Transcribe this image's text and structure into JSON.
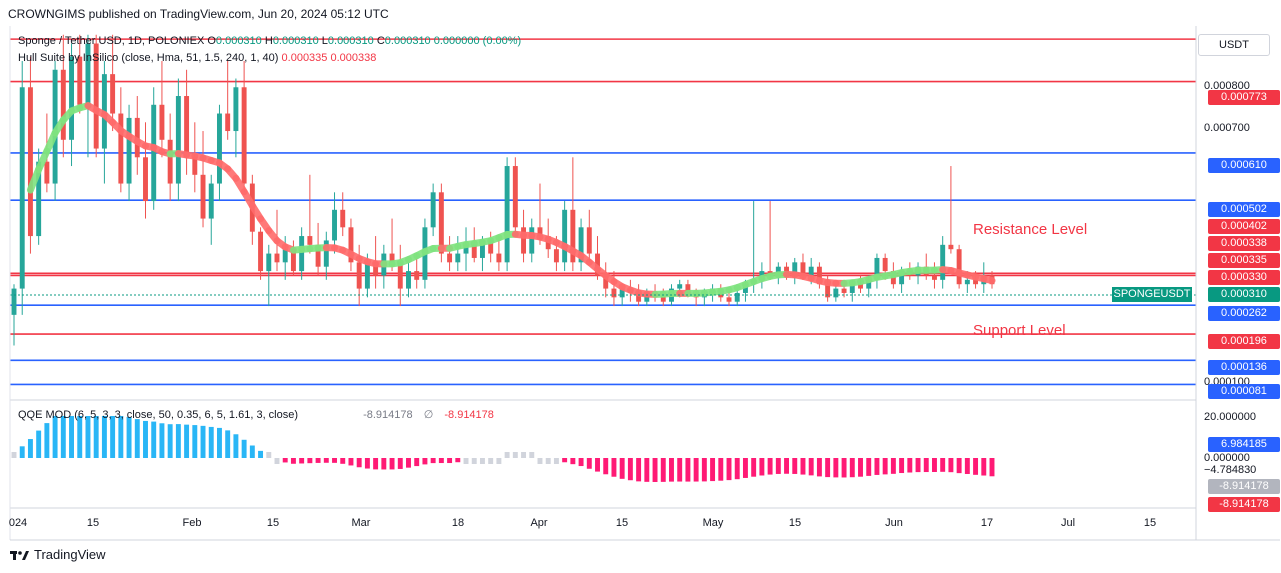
{
  "header": {
    "text": "CROWNGIMS published on TradingView.com, Jun 20, 2024 05:12 UTC"
  },
  "legend": {
    "symbol": "Sponge / Tether USD, 1D, POLONIEX",
    "o_label": "O",
    "o_value": "0.000310",
    "h_label": "H",
    "h_value": "0.000310",
    "l_label": "L",
    "l_value": "0.000310",
    "c_label": "C",
    "c_value": "0.000310",
    "change": "0.000000 (0.00%)",
    "hull_name": "Hull Suite by InSilico (close, Hma, 51, 1.5, 240, 1, 40)",
    "hull_v1": "0.000335",
    "hull_v2": "0.000338"
  },
  "qqe": {
    "name": "QQE MOD (6, 5, 3, 3, close, 50, 0.35, 6, 5, 1.61, 3, close)",
    "v1": "-8.914178",
    "symbol": "∅",
    "v2": "-8.914178"
  },
  "currency": "USDT",
  "price_scale": {
    "plain_ticks": [
      "0.000800",
      "0.000700",
      "0.000100"
    ],
    "labels": [
      {
        "text": "0.000773",
        "color": "#f23645",
        "y": 0.000773
      },
      {
        "text": "0.000610",
        "color": "#2962ff",
        "y": 0.00061
      },
      {
        "text": "0.000502",
        "color": "#2962ff",
        "y": 0.000502
      },
      {
        "text": "0.000402",
        "color": "#f23645",
        "y": 0.000402
      },
      {
        "text": "0.000338",
        "color": "#f23645",
        "y": 0.000338
      },
      {
        "text": "0.000335",
        "color": "#f23645",
        "y": 0.000335
      },
      {
        "text": "0.000330",
        "color": "#f23645",
        "y": 0.00033
      },
      {
        "text": "0.000310",
        "color": "#089981",
        "y": 0.00031
      },
      {
        "text": "0.000262",
        "color": "#2962ff",
        "y": 0.000262
      },
      {
        "text": "0.000196",
        "color": "#f23645",
        "y": 0.000196
      },
      {
        "text": "0.000136",
        "color": "#2962ff",
        "y": 0.000136
      },
      {
        "text": "0.000081",
        "color": "#2962ff",
        "y": 8.1e-05
      }
    ]
  },
  "symbol_tag": "SPONGEUSDT",
  "osc_scale": {
    "plain_ticks": [
      "20.000000",
      "0.000000",
      "−4.784830"
    ],
    "labels": [
      {
        "text": "6.984185",
        "color": "#2962ff"
      },
      {
        "text": "-8.914178",
        "color": "#b2b5be"
      },
      {
        "text": "-8.914178",
        "color": "#f23645"
      }
    ]
  },
  "x_axis": {
    "ticks": [
      "024",
      "15",
      "Feb",
      "15",
      "Mar",
      "18",
      "Apr",
      "15",
      "May",
      "15",
      "Jun",
      "17",
      "Jul",
      "15"
    ]
  },
  "annotations": {
    "resistance": "Resistance Level",
    "support": "Support Level"
  },
  "footer": {
    "brand": "TradingView"
  },
  "chart_data": {
    "type": "candlestick",
    "title": "Sponge / Tether USD, 1D, POLONIEX",
    "y_unit": "USDT",
    "horizontal_levels": [
      {
        "value": 0.00087,
        "color": "#f23645"
      },
      {
        "value": 0.000773,
        "color": "#f23645"
      },
      {
        "value": 0.00061,
        "color": "#2962ff"
      },
      {
        "value": 0.000502,
        "color": "#2962ff"
      },
      {
        "value": 0.000335,
        "color": "#f23645"
      },
      {
        "value": 0.00033,
        "color": "#f23645"
      },
      {
        "value": 0.000262,
        "color": "#2962ff"
      },
      {
        "value": 0.000196,
        "color": "#f23645"
      },
      {
        "value": 0.000136,
        "color": "#2962ff"
      },
      {
        "value": 8.1e-05,
        "color": "#2962ff"
      }
    ],
    "last_close": 0.00031,
    "colors": {
      "up": "#26a69a",
      "down": "#ef5350",
      "hull_up": "#7fe37f",
      "hull_down": "#ff6b6b"
    },
    "candles": [
      [
        0.00024,
        0.00031,
        0.00017,
        0.0003
      ],
      [
        0.0003,
        0.00082,
        0.00024,
        0.00076
      ],
      [
        0.00076,
        0.00083,
        0.00038,
        0.00042
      ],
      [
        0.00042,
        0.00062,
        0.0004,
        0.00059
      ],
      [
        0.00059,
        0.0007,
        0.00052,
        0.00054
      ],
      [
        0.00054,
        0.00082,
        0.0005,
        0.0008
      ],
      [
        0.0008,
        0.00088,
        0.0006,
        0.00064
      ],
      [
        0.00064,
        0.00086,
        0.00058,
        0.00083
      ],
      [
        0.00083,
        0.00088,
        0.0007,
        0.00072
      ],
      [
        0.00072,
        0.00088,
        0.0006,
        0.00086
      ],
      [
        0.00086,
        0.00088,
        0.0006,
        0.00062
      ],
      [
        0.00062,
        0.00082,
        0.00054,
        0.00079
      ],
      [
        0.00079,
        0.00088,
        0.00066,
        0.0007
      ],
      [
        0.0007,
        0.00076,
        0.00052,
        0.00054
      ],
      [
        0.00054,
        0.00072,
        0.0005,
        0.00069
      ],
      [
        0.00069,
        0.00074,
        0.00056,
        0.0006
      ],
      [
        0.0006,
        0.00068,
        0.00046,
        0.0005
      ],
      [
        0.0005,
        0.00076,
        0.00048,
        0.00072
      ],
      [
        0.00072,
        0.00082,
        0.0006,
        0.00064
      ],
      [
        0.00064,
        0.0007,
        0.0005,
        0.00054
      ],
      [
        0.00054,
        0.00078,
        0.0005,
        0.00074
      ],
      [
        0.00074,
        0.0008,
        0.00056,
        0.0006
      ],
      [
        0.0006,
        0.00068,
        0.00052,
        0.00056
      ],
      [
        0.00056,
        0.00066,
        0.00044,
        0.00046
      ],
      [
        0.00046,
        0.00056,
        0.0004,
        0.00054
      ],
      [
        0.00054,
        0.00072,
        0.0005,
        0.0007
      ],
      [
        0.0007,
        0.00082,
        0.00064,
        0.00066
      ],
      [
        0.00066,
        0.00078,
        0.0006,
        0.00076
      ],
      [
        0.00076,
        0.00082,
        0.00052,
        0.00054
      ],
      [
        0.00054,
        0.00056,
        0.0004,
        0.00043
      ],
      [
        0.00043,
        0.00044,
        0.00032,
        0.00034
      ],
      [
        0.00034,
        0.0004,
        0.00026,
        0.00038
      ],
      [
        0.00038,
        0.00048,
        0.00034,
        0.00036
      ],
      [
        0.00036,
        0.00042,
        0.00032,
        0.00039
      ],
      [
        0.00039,
        0.00041,
        0.00033,
        0.00034
      ],
      [
        0.00034,
        0.00044,
        0.00032,
        0.00042
      ],
      [
        0.00042,
        0.00056,
        0.00038,
        0.0004
      ],
      [
        0.0004,
        0.00045,
        0.00033,
        0.00035
      ],
      [
        0.00035,
        0.00043,
        0.00032,
        0.00041
      ],
      [
        0.00041,
        0.00052,
        0.00038,
        0.00048
      ],
      [
        0.00048,
        0.00052,
        0.00042,
        0.00044
      ],
      [
        0.00044,
        0.00046,
        0.00034,
        0.00036
      ],
      [
        0.00036,
        0.0004,
        0.00026,
        0.0003
      ],
      [
        0.0003,
        0.00038,
        0.00028,
        0.00036
      ],
      [
        0.00036,
        0.00042,
        0.0003,
        0.00033
      ],
      [
        0.00033,
        0.0004,
        0.0003,
        0.00038
      ],
      [
        0.00038,
        0.00046,
        0.00034,
        0.00036
      ],
      [
        0.00036,
        0.0004,
        0.00026,
        0.0003
      ],
      [
        0.0003,
        0.00036,
        0.00028,
        0.00034
      ],
      [
        0.00034,
        0.00038,
        0.0003,
        0.00032
      ],
      [
        0.00032,
        0.00046,
        0.0003,
        0.00044
      ],
      [
        0.00044,
        0.00054,
        0.00042,
        0.00052
      ],
      [
        0.00052,
        0.00054,
        0.00036,
        0.00038
      ],
      [
        0.00038,
        0.00042,
        0.00034,
        0.00036
      ],
      [
        0.00036,
        0.00042,
        0.00034,
        0.00038
      ],
      [
        0.00038,
        0.00044,
        0.00034,
        0.0004
      ],
      [
        0.0004,
        0.00044,
        0.00036,
        0.00037
      ],
      [
        0.00037,
        0.00042,
        0.00034,
        0.00041
      ],
      [
        0.00041,
        0.00043,
        0.00036,
        0.00038
      ],
      [
        0.00038,
        0.00042,
        0.00034,
        0.00036
      ],
      [
        0.00036,
        0.0006,
        0.00034,
        0.00058
      ],
      [
        0.00058,
        0.0006,
        0.00042,
        0.00044
      ],
      [
        0.00044,
        0.00048,
        0.00036,
        0.00038
      ],
      [
        0.00038,
        0.00046,
        0.00036,
        0.00044
      ],
      [
        0.00044,
        0.00054,
        0.0004,
        0.00042
      ],
      [
        0.00042,
        0.00046,
        0.00037,
        0.00039
      ],
      [
        0.00039,
        0.00042,
        0.00034,
        0.00036
      ],
      [
        0.00036,
        0.0005,
        0.00034,
        0.00048
      ],
      [
        0.00048,
        0.0006,
        0.00034,
        0.00036
      ],
      [
        0.00036,
        0.00046,
        0.00034,
        0.00044
      ],
      [
        0.00044,
        0.00048,
        0.00036,
        0.00038
      ],
      [
        0.00038,
        0.00042,
        0.00032,
        0.00033
      ],
      [
        0.00033,
        0.00036,
        0.00028,
        0.0003
      ],
      [
        0.0003,
        0.00034,
        0.00026,
        0.00028
      ],
      [
        0.00028,
        0.00031,
        0.00026,
        0.0003
      ],
      [
        0.0003,
        0.00032,
        0.00027,
        0.00029
      ],
      [
        0.00029,
        0.00031,
        0.00026,
        0.00027
      ],
      [
        0.00027,
        0.0003,
        0.00026,
        0.00029
      ],
      [
        0.00029,
        0.00031,
        0.00027,
        0.00028
      ],
      [
        0.00028,
        0.0003,
        0.00026,
        0.00027
      ],
      [
        0.00027,
        0.00031,
        0.00026,
        0.0003
      ],
      [
        0.0003,
        0.00032,
        0.00028,
        0.00031
      ],
      [
        0.00031,
        0.00032,
        0.00028,
        0.00029
      ],
      [
        0.00029,
        0.0003,
        0.00026,
        0.00028
      ],
      [
        0.00028,
        0.0003,
        0.00026,
        0.00029
      ],
      [
        0.00029,
        0.00031,
        0.00027,
        0.0003
      ],
      [
        0.0003,
        0.00031,
        0.00027,
        0.00028
      ],
      [
        0.00028,
        0.0003,
        0.00026,
        0.00027
      ],
      [
        0.00027,
        0.0003,
        0.00026,
        0.00029
      ],
      [
        0.00029,
        0.00032,
        0.00027,
        0.00031
      ],
      [
        0.00031,
        0.0005,
        0.00029,
        0.00032
      ],
      [
        0.00032,
        0.00036,
        0.0003,
        0.00034
      ],
      [
        0.00034,
        0.0005,
        0.00032,
        0.00033
      ],
      [
        0.00033,
        0.00036,
        0.00031,
        0.00035
      ],
      [
        0.00035,
        0.00036,
        0.00032,
        0.00033
      ],
      [
        0.00033,
        0.00037,
        0.00031,
        0.00036
      ],
      [
        0.00036,
        0.00038,
        0.00032,
        0.00033
      ],
      [
        0.00033,
        0.00037,
        0.00031,
        0.00035
      ],
      [
        0.00035,
        0.00036,
        0.0003,
        0.00031
      ],
      [
        0.00031,
        0.00033,
        0.00027,
        0.00028
      ],
      [
        0.00028,
        0.00031,
        0.00027,
        0.0003
      ],
      [
        0.0003,
        0.00032,
        0.00028,
        0.00029
      ],
      [
        0.00029,
        0.00032,
        0.00027,
        0.00031
      ],
      [
        0.00031,
        0.00033,
        0.00029,
        0.0003
      ],
      [
        0.0003,
        0.00033,
        0.00028,
        0.00032
      ],
      [
        0.00032,
        0.00038,
        0.0003,
        0.00037
      ],
      [
        0.00037,
        0.00038,
        0.00032,
        0.00034
      ],
      [
        0.00034,
        0.00036,
        0.0003,
        0.00031
      ],
      [
        0.00031,
        0.00035,
        0.00029,
        0.00034
      ],
      [
        0.00034,
        0.00036,
        0.00032,
        0.00033
      ],
      [
        0.00033,
        0.00036,
        0.00031,
        0.00035
      ],
      [
        0.00035,
        0.00038,
        0.00032,
        0.00033
      ],
      [
        0.00033,
        0.00036,
        0.0003,
        0.00032
      ],
      [
        0.00032,
        0.00042,
        0.0003,
        0.0004
      ],
      [
        0.0004,
        0.00058,
        0.00038,
        0.00039
      ],
      [
        0.00039,
        0.0004,
        0.0003,
        0.00031
      ],
      [
        0.00031,
        0.00034,
        0.00029,
        0.00032
      ],
      [
        0.00032,
        0.00034,
        0.0003,
        0.00031
      ],
      [
        0.00031,
        0.00036,
        0.00029,
        0.00033
      ],
      [
        0.00033,
        0.00034,
        0.0003,
        0.00031
      ]
    ]
  }
}
